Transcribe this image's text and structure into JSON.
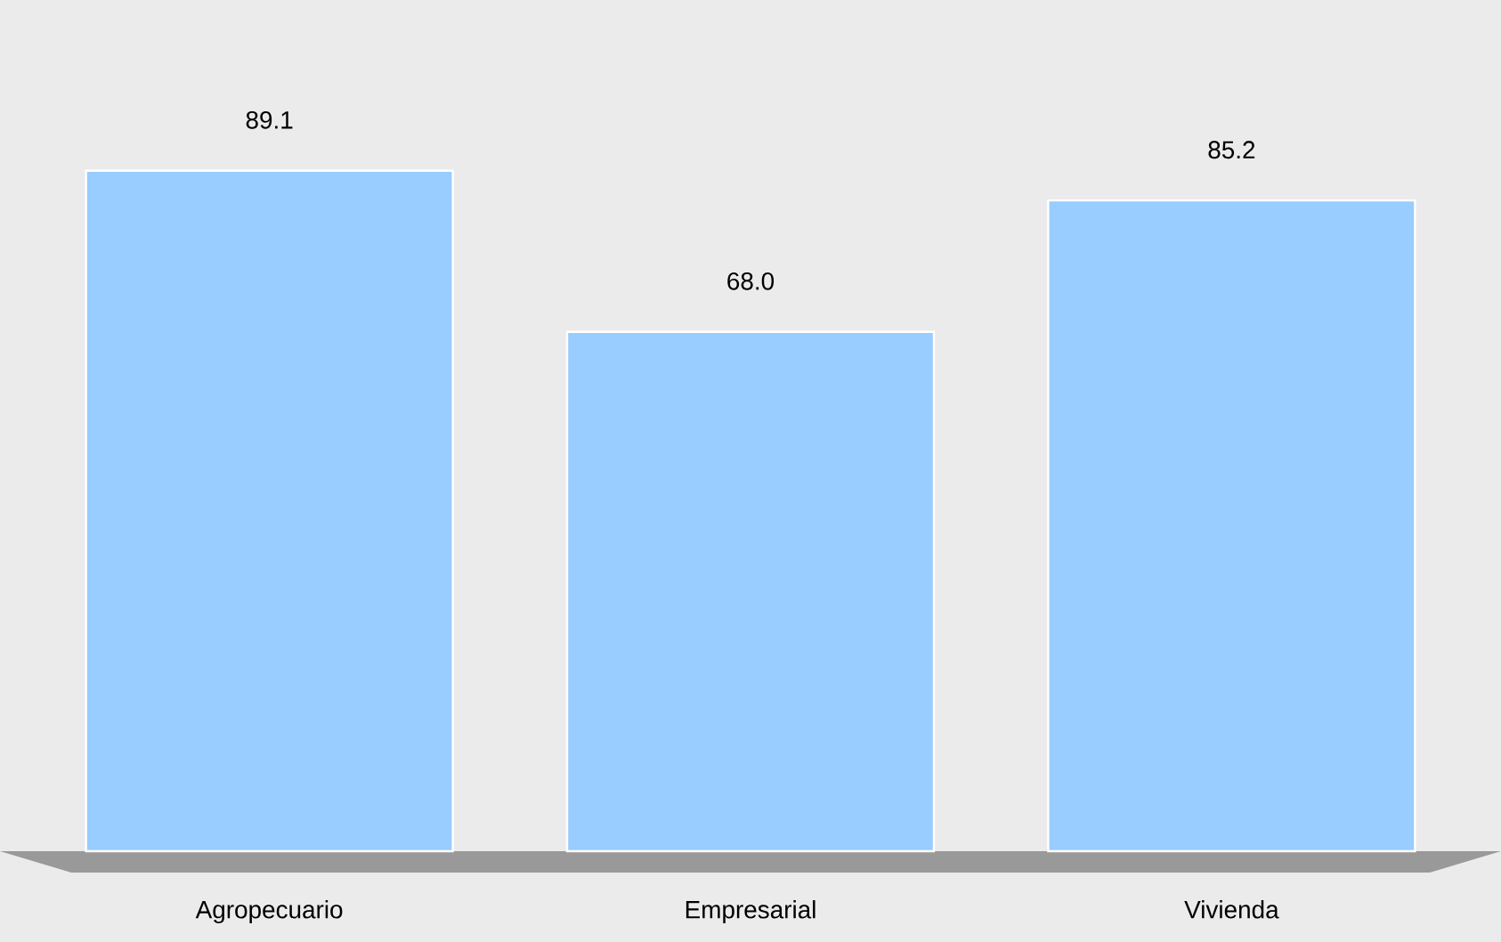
{
  "chart_data": {
    "type": "bar",
    "categories": [
      "Agropecuario",
      "Empresarial",
      "Vivienda"
    ],
    "values": [
      89.1,
      68.0,
      85.2
    ],
    "value_labels": [
      "89.1",
      "68.0",
      "85.2"
    ],
    "color": "#99ccff"
  }
}
